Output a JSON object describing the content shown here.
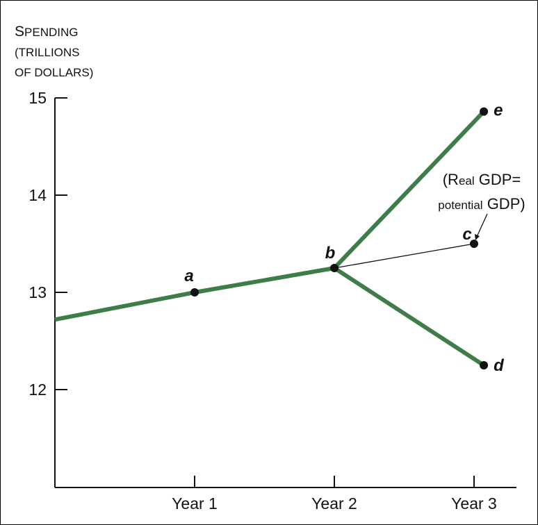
{
  "chart_data": {
    "type": "line",
    "ylabel": {
      "line1_cap": "S",
      "line1_rest": "PENDING",
      "line2": "(TRILLIONS",
      "line3": "OF DOLLARS)"
    },
    "x_categories": [
      "Year 1",
      "Year 2",
      "Year 3"
    ],
    "y_ticks": [
      12,
      13,
      14,
      15
    ],
    "ylim": [
      11,
      15
    ],
    "series": [
      {
        "id": "history",
        "points": [
          [
            0,
            12.72
          ],
          [
            1,
            13.0
          ],
          [
            2,
            13.25
          ]
        ]
      },
      {
        "id": "high",
        "points": [
          [
            2,
            13.25
          ],
          [
            3.07,
            14.86
          ]
        ]
      },
      {
        "id": "low",
        "points": [
          [
            2,
            13.25
          ],
          [
            3.07,
            12.25
          ]
        ]
      },
      {
        "id": "potential",
        "points": [
          [
            2,
            13.25
          ],
          [
            3.0,
            13.5
          ]
        ]
      }
    ],
    "points": [
      {
        "label": "a",
        "x": 1,
        "y": 13.0
      },
      {
        "label": "b",
        "x": 2,
        "y": 13.25
      },
      {
        "label": "c",
        "x": 3.0,
        "y": 13.5
      },
      {
        "label": "d",
        "x": 3.07,
        "y": 12.25
      },
      {
        "label": "e",
        "x": 3.07,
        "y": 14.86
      }
    ],
    "annotation": {
      "line1_cap": "(R",
      "line1_small": "eal",
      "line1_rest": " GDP=",
      "line2_small": "potential",
      "line2_rest": " GDP)"
    },
    "colors": {
      "curve": "#3f7d48",
      "thin": "#111111",
      "dot": "#111111"
    }
  }
}
